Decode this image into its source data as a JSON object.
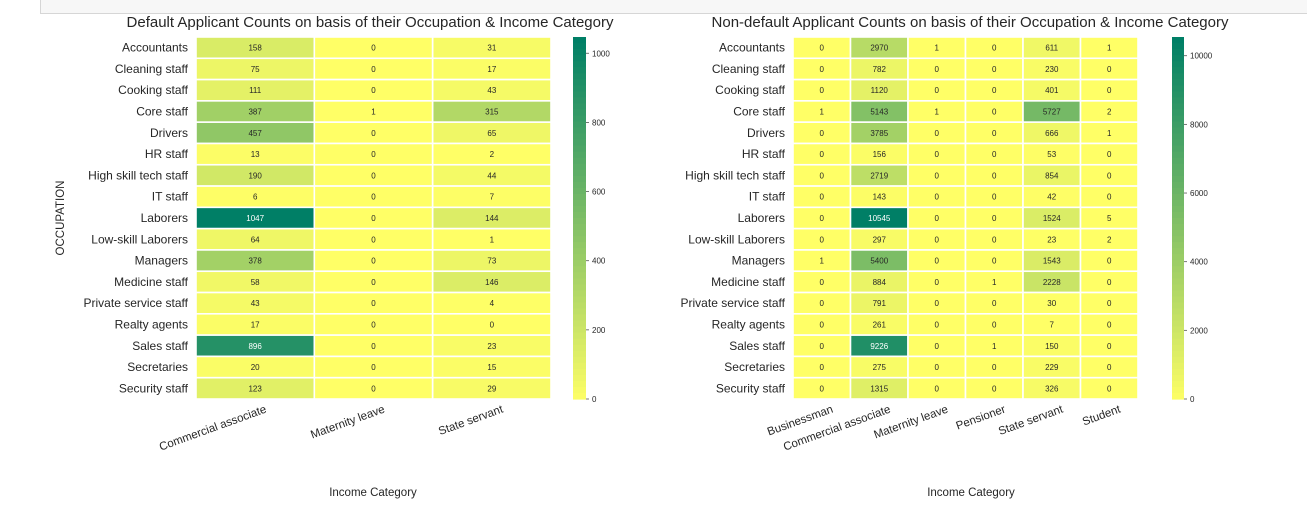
{
  "chart_data": [
    {
      "type": "heatmap",
      "title": "Default Applicant Counts on basis of their Occupation & Income Category",
      "xlabel": "Income Category",
      "ylabel": "OCCUPATION",
      "x": [
        "Commercial associate",
        "Maternity leave",
        "State servant"
      ],
      "y": [
        "Accountants",
        "Cleaning staff",
        "Cooking staff",
        "Core staff",
        "Drivers",
        "HR staff",
        "High skill tech staff",
        "IT staff",
        "Laborers",
        "Low-skill Laborers",
        "Managers",
        "Medicine staff",
        "Private service staff",
        "Realty agents",
        "Sales staff",
        "Secretaries",
        "Security staff"
      ],
      "values": [
        [
          158,
          0,
          31
        ],
        [
          75,
          0,
          17
        ],
        [
          111,
          0,
          43
        ],
        [
          387,
          1,
          315
        ],
        [
          457,
          0,
          65
        ],
        [
          13,
          0,
          2
        ],
        [
          190,
          0,
          44
        ],
        [
          6,
          0,
          7
        ],
        [
          1047,
          0,
          144
        ],
        [
          64,
          0,
          1
        ],
        [
          378,
          0,
          73
        ],
        [
          58,
          0,
          146
        ],
        [
          43,
          0,
          4
        ],
        [
          17,
          0,
          0
        ],
        [
          896,
          0,
          23
        ],
        [
          20,
          0,
          15
        ],
        [
          123,
          0,
          29
        ]
      ],
      "colorbar": {
        "min": 0,
        "max": 1047,
        "ticks": [
          0,
          200,
          400,
          600,
          800,
          1000
        ]
      },
      "colormap": [
        "#ffff66",
        "#007f66"
      ]
    },
    {
      "type": "heatmap",
      "title": "Non-default Applicant Counts on basis of their Occupation & Income Category",
      "xlabel": "Income Category",
      "ylabel": "",
      "x": [
        "Businessman",
        "Commercial associate",
        "Maternity leave",
        "Pensioner",
        "State servant",
        "Student"
      ],
      "y": [
        "Accountants",
        "Cleaning staff",
        "Cooking staff",
        "Core staff",
        "Drivers",
        "HR staff",
        "High skill tech staff",
        "IT staff",
        "Laborers",
        "Low-skill Laborers",
        "Managers",
        "Medicine staff",
        "Private service staff",
        "Realty agents",
        "Sales staff",
        "Secretaries",
        "Security staff"
      ],
      "values": [
        [
          0,
          2970,
          1,
          0,
          611,
          1
        ],
        [
          0,
          782,
          0,
          0,
          230,
          0
        ],
        [
          0,
          1120,
          0,
          0,
          401,
          0
        ],
        [
          1,
          5143,
          1,
          0,
          5727,
          2
        ],
        [
          0,
          3785,
          0,
          0,
          666,
          1
        ],
        [
          0,
          156,
          0,
          0,
          53,
          0
        ],
        [
          0,
          2719,
          0,
          0,
          854,
          0
        ],
        [
          0,
          143,
          0,
          0,
          42,
          0
        ],
        [
          0,
          10545,
          0,
          0,
          1524,
          5
        ],
        [
          0,
          297,
          0,
          0,
          23,
          2
        ],
        [
          1,
          5400,
          0,
          0,
          1543,
          0
        ],
        [
          0,
          884,
          0,
          1,
          2228,
          0
        ],
        [
          0,
          791,
          0,
          0,
          30,
          0
        ],
        [
          0,
          261,
          0,
          0,
          7,
          0
        ],
        [
          0,
          9226,
          0,
          1,
          150,
          0
        ],
        [
          0,
          275,
          0,
          0,
          229,
          0
        ],
        [
          0,
          1315,
          0,
          0,
          326,
          0
        ]
      ],
      "colorbar": {
        "min": 0,
        "max": 10545,
        "ticks": [
          0,
          2000,
          4000,
          6000,
          8000,
          10000
        ]
      },
      "colormap": [
        "#ffff66",
        "#007f66"
      ]
    }
  ]
}
